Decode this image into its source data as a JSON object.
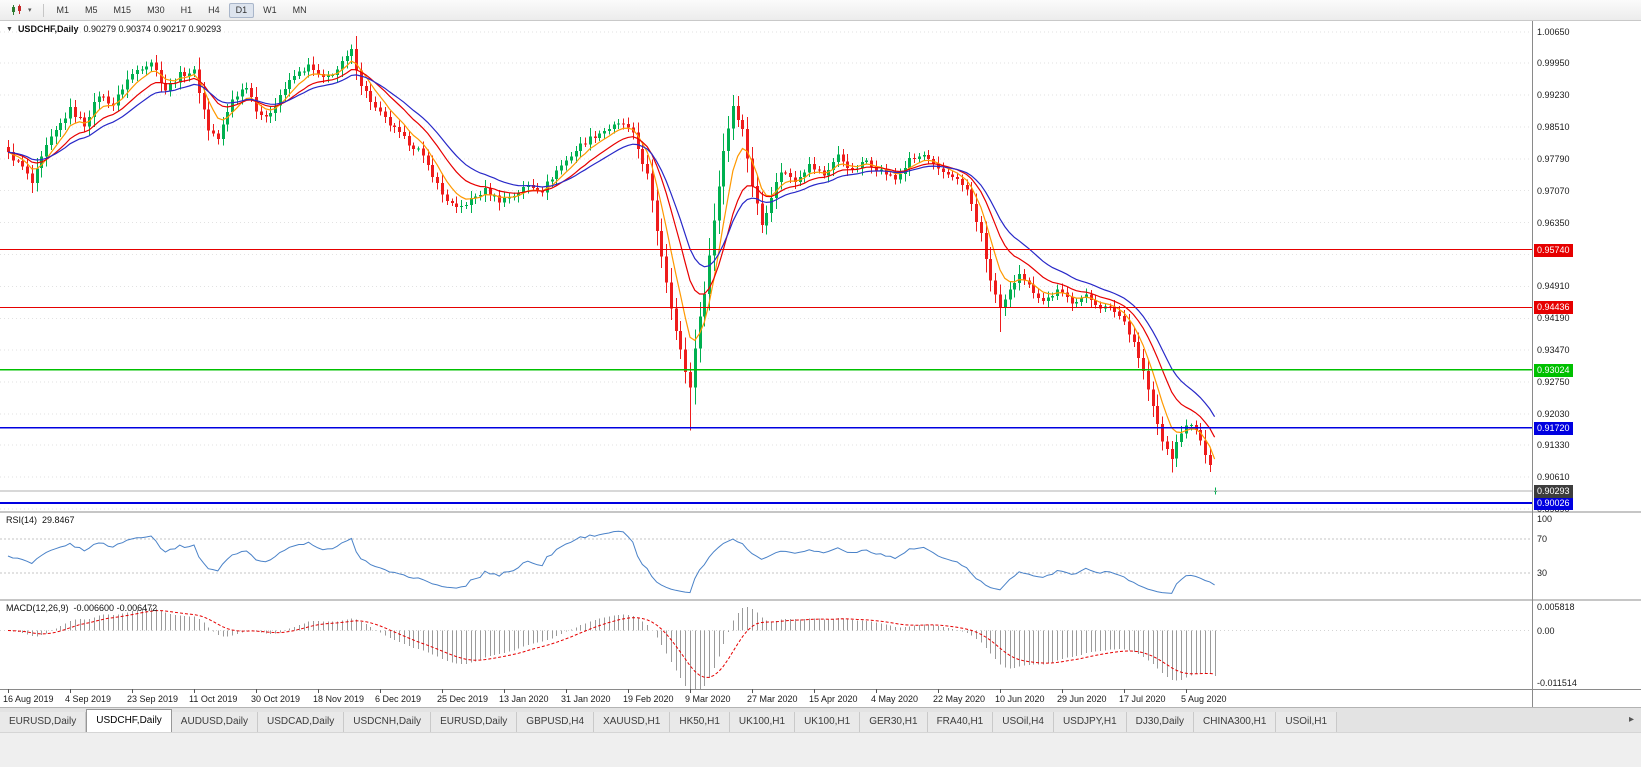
{
  "toolbar": {
    "chart_type_icon": "candlestick-chart",
    "dropdown_caret": "▾",
    "timeframes": [
      "M1",
      "M5",
      "M15",
      "M30",
      "H1",
      "H4",
      "D1",
      "W1",
      "MN"
    ],
    "active_timeframe": "D1"
  },
  "chart": {
    "collapse_icon": "▼",
    "symbol_label": "USDCHF,Daily",
    "ohlc_text": "0.90279 0.90374 0.90217 0.90293",
    "price_axis_ticks": [
      "1.00650",
      "0.99950",
      "0.99230",
      "0.98510",
      "0.97790",
      "0.97070",
      "0.96350",
      "0.95630",
      "0.94910",
      "0.94190",
      "0.93470",
      "0.92750",
      "0.92030",
      "0.91330",
      "0.90610",
      "0.89890"
    ],
    "hlines": [
      {
        "label": "0.95740",
        "price": 0.9574,
        "color": "#e60000",
        "width": 1.2
      },
      {
        "label": "0.94436",
        "price": 0.94436,
        "color": "#e60000",
        "width": 1.2
      },
      {
        "label": "0.93024",
        "price": 0.93024,
        "color": "#00c000",
        "width": 1.6
      },
      {
        "label": "0.91720",
        "price": 0.9172,
        "color": "#0000e0",
        "width": 1.6
      },
      {
        "label": "0.90026",
        "price": 0.90026,
        "color": "#0000e0",
        "width": 2
      }
    ],
    "current_price": {
      "label": "0.90293",
      "price": 0.90293,
      "color": "#3d3d3d"
    }
  },
  "rsi_panel": {
    "label": "RSI(14)",
    "value": "29.8467",
    "period": 14,
    "color": "#4a82c8",
    "levels": [
      70,
      30
    ],
    "axis_ticks": [
      {
        "label": "100",
        "value": 100
      },
      {
        "label": "70",
        "value": 70
      },
      {
        "label": "30",
        "value": 30
      }
    ]
  },
  "macd_panel": {
    "label": "MACD(12,26,9)",
    "value": "-0.006600 -0.006472",
    "fast": 12,
    "slow": 26,
    "signal": 9,
    "histogram_color": "#9b9b9b",
    "signal_color": "#e60000",
    "range": [
      -0.011514,
      0.005818
    ],
    "axis_ticks": [
      {
        "label": "0.005818",
        "value": 0.005818
      },
      {
        "label": "0.00",
        "value": 0
      },
      {
        "label": "-0.011514",
        "value": -0.011514
      }
    ]
  },
  "tabs": {
    "items": [
      "EURUSD,Daily",
      "USDCHF,Daily",
      "AUDUSD,Daily",
      "USDCAD,Daily",
      "USDCNH,Daily",
      "EURUSD,Daily",
      "GBPUSD,H4",
      "XAUUSD,H1",
      "HK50,H1",
      "UK100,H1",
      "UK100,H1",
      "GER30,H1",
      "FRA40,H1",
      "USOil,H4",
      "USDJPY,H1",
      "DJ30,Daily",
      "CHINA300,H1",
      "USOil,H1"
    ],
    "active_index": 1,
    "overflow_arrow": "▸"
  },
  "chart_data": {
    "type": "candlestick",
    "symbol": "USDCHF",
    "period": "Daily",
    "total_bars": 254,
    "bars_per_xlabel": 13,
    "ylim": [
      0.8984,
      1.009
    ],
    "x_labels": [
      "16 Aug 2019",
      "4 Sep 2019",
      "23 Sep 2019",
      "11 Oct 2019",
      "30 Oct 2019",
      "18 Nov 2019",
      "6 Dec 2019",
      "25 Dec 2019",
      "13 Jan 2020",
      "31 Jan 2020",
      "19 Feb 2020",
      "9 Mar 2020",
      "27 Mar 2020",
      "15 Apr 2020",
      "4 May 2020",
      "22 May 2020",
      "10 Jun 2020",
      "29 Jun 2020",
      "17 Jul 2020",
      "5 Aug 2020"
    ],
    "up_color": "#00b050",
    "down_color": "#ee1c1c",
    "bid_line_color": "#b0b0b0",
    "grid_color": "#e2e2e2",
    "moving_averages": [
      {
        "period": 6,
        "color": "#ff9900"
      },
      {
        "period": 13,
        "color": "#e80000"
      },
      {
        "period": 20,
        "color": "#2828c8"
      }
    ],
    "noise": 0.0013,
    "close_keyframes": [
      [
        0,
        0.979
      ],
      [
        3,
        0.976
      ],
      [
        5,
        0.9724
      ],
      [
        8,
        0.9806
      ],
      [
        11,
        0.9858
      ],
      [
        13,
        0.989
      ],
      [
        16,
        0.9856
      ],
      [
        19,
        0.9924
      ],
      [
        22,
        0.9901
      ],
      [
        25,
        0.9958
      ],
      [
        27,
        0.998
      ],
      [
        30,
        0.9999
      ],
      [
        33,
        0.9935
      ],
      [
        36,
        0.9969
      ],
      [
        39,
        0.9976
      ],
      [
        42,
        0.9846
      ],
      [
        44,
        0.9824
      ],
      [
        47,
        0.9913
      ],
      [
        50,
        0.9945
      ],
      [
        52,
        0.9892
      ],
      [
        54,
        0.9868
      ],
      [
        57,
        0.9924
      ],
      [
        60,
        0.9966
      ],
      [
        63,
        0.9988
      ],
      [
        66,
        0.9958
      ],
      [
        69,
        0.998
      ],
      [
        72,
        1.0022
      ],
      [
        74,
        0.9948
      ],
      [
        77,
        0.9892
      ],
      [
        80,
        0.9856
      ],
      [
        83,
        0.9824
      ],
      [
        86,
        0.9799
      ],
      [
        89,
        0.9744
      ],
      [
        91,
        0.9698
      ],
      [
        94,
        0.9664
      ],
      [
        97,
        0.9686
      ],
      [
        100,
        0.9708
      ],
      [
        103,
        0.9686
      ],
      [
        106,
        0.9697
      ],
      [
        109,
        0.9719
      ],
      [
        112,
        0.9708
      ],
      [
        115,
        0.9752
      ],
      [
        117,
        0.9775
      ],
      [
        120,
        0.981
      ],
      [
        123,
        0.9832
      ],
      [
        126,
        0.9848
      ],
      [
        129,
        0.9858
      ],
      [
        131,
        0.9832
      ],
      [
        134,
        0.9742
      ],
      [
        136,
        0.9618
      ],
      [
        138,
        0.9504
      ],
      [
        140,
        0.939
      ],
      [
        142,
        0.93
      ],
      [
        143,
        0.9262
      ],
      [
        144,
        0.9356
      ],
      [
        146,
        0.948
      ],
      [
        148,
        0.964
      ],
      [
        150,
        0.9798
      ],
      [
        152,
        0.99
      ],
      [
        154,
        0.9844
      ],
      [
        156,
        0.972
      ],
      [
        158,
        0.963
      ],
      [
        160,
        0.9696
      ],
      [
        162,
        0.9752
      ],
      [
        165,
        0.9732
      ],
      [
        168,
        0.9764
      ],
      [
        171,
        0.9742
      ],
      [
        174,
        0.9786
      ],
      [
        177,
        0.9752
      ],
      [
        180,
        0.9775
      ],
      [
        183,
        0.9752
      ],
      [
        186,
        0.9732
      ],
      [
        189,
        0.9775
      ],
      [
        192,
        0.9786
      ],
      [
        195,
        0.9752
      ],
      [
        198,
        0.9742
      ],
      [
        201,
        0.9708
      ],
      [
        204,
        0.9606
      ],
      [
        206,
        0.9504
      ],
      [
        208,
        0.9436
      ],
      [
        210,
        0.948
      ],
      [
        212,
        0.9525
      ],
      [
        214,
        0.9492
      ],
      [
        217,
        0.9458
      ],
      [
        220,
        0.948
      ],
      [
        223,
        0.9458
      ],
      [
        226,
        0.9468
      ],
      [
        229,
        0.9446
      ],
      [
        232,
        0.9436
      ],
      [
        234,
        0.9412
      ],
      [
        236,
        0.9366
      ],
      [
        238,
        0.9298
      ],
      [
        240,
        0.9218
      ],
      [
        242,
        0.914
      ],
      [
        244,
        0.9106
      ],
      [
        246,
        0.9162
      ],
      [
        248,
        0.9184
      ],
      [
        250,
        0.914
      ],
      [
        252,
        0.9082
      ],
      [
        253,
        0.903
      ]
    ],
    "wick_overrides": [
      {
        "bar": 5,
        "low": 0.9702
      },
      {
        "bar": 72,
        "high": 1.0037
      },
      {
        "bar": 130,
        "high": 0.9872
      },
      {
        "bar": 143,
        "low": 0.9166
      },
      {
        "bar": 152,
        "high": 0.9923
      },
      {
        "bar": 158,
        "low": 0.9612
      },
      {
        "bar": 208,
        "low": 0.9388
      },
      {
        "bar": 244,
        "low": 0.9071
      }
    ],
    "last_bar": {
      "open": 0.90279,
      "high": 0.90374,
      "low": 0.90217,
      "close": 0.90293
    }
  }
}
